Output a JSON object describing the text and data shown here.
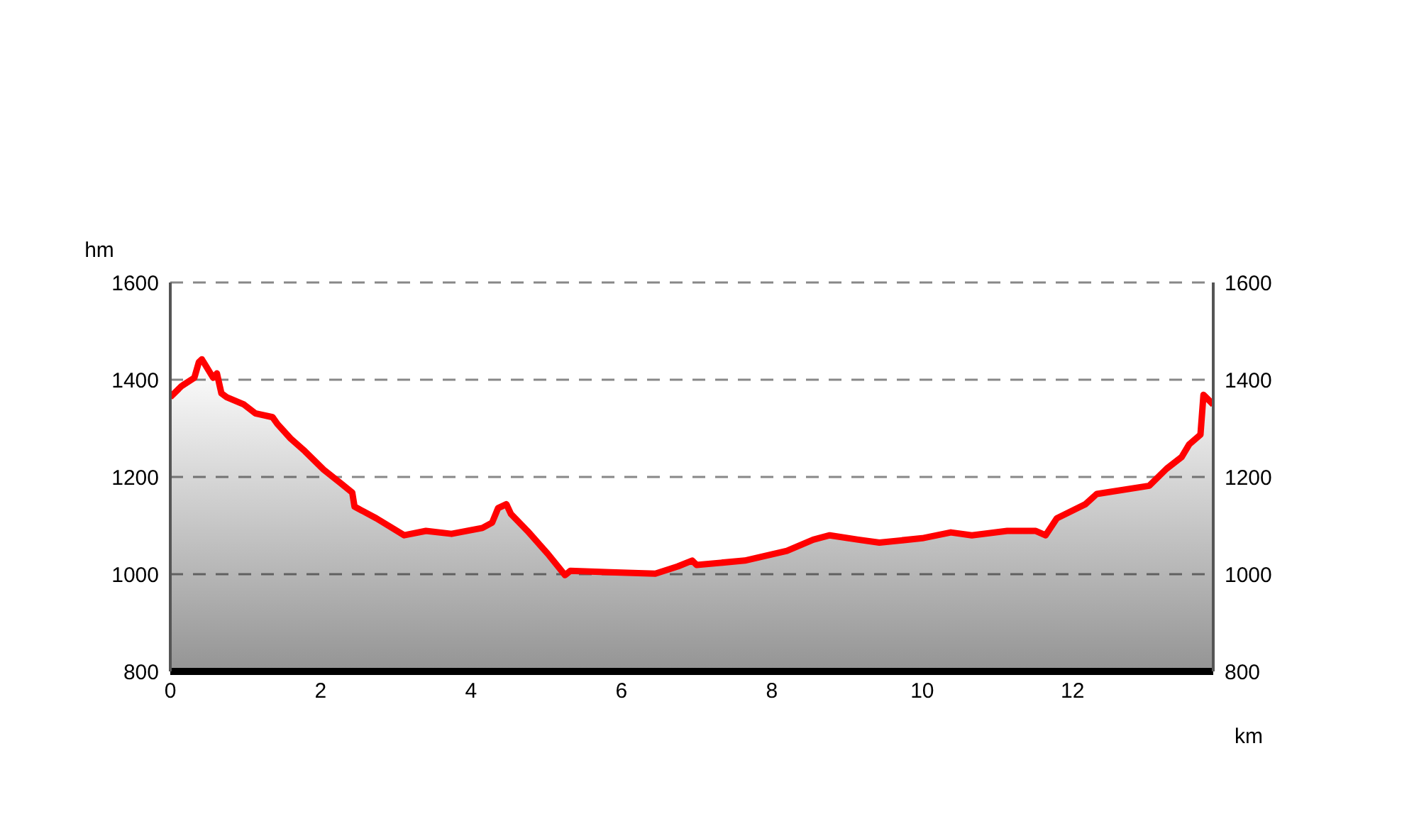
{
  "chart_data": {
    "type": "area",
    "xlabel": "km",
    "ylabel": "hm",
    "x": [
      0,
      0.15,
      0.32,
      0.38,
      0.42,
      0.57,
      0.62,
      0.68,
      0.75,
      0.98,
      1.13,
      1.36,
      1.43,
      1.6,
      1.79,
      2.04,
      2.26,
      2.42,
      2.45,
      2.74,
      3.11,
      3.4,
      3.74,
      4.15,
      4.28,
      4.36,
      4.47,
      4.53,
      4.75,
      5.02,
      5.25,
      5.32,
      5.85,
      6.45,
      6.75,
      6.94,
      7.0,
      7.64,
      8.2,
      8.55,
      8.77,
      9.15,
      9.43,
      10.0,
      10.38,
      10.66,
      11.13,
      11.51,
      11.64,
      11.79,
      12.17,
      12.32,
      13.02,
      13.25,
      13.45,
      13.55,
      13.7,
      13.74,
      13.87
    ],
    "series": [
      {
        "color": "#ff0000",
        "values": [
          1364,
          1387,
          1404,
          1436,
          1442,
          1404,
          1413,
          1372,
          1364,
          1349,
          1331,
          1323,
          1308,
          1279,
          1253,
          1215,
          1188,
          1168,
          1139,
          1115,
          1080,
          1089,
          1083,
          1095,
          1106,
          1136,
          1144,
          1124,
          1089,
          1042,
          998,
          1007,
          1004,
          1001,
          1016,
          1028,
          1019,
          1028,
          1048,
          1071,
          1080,
          1071,
          1065,
          1074,
          1086,
          1080,
          1089,
          1089,
          1080,
          1115,
          1144,
          1165,
          1182,
          1217,
          1241,
          1267,
          1287,
          1369,
          1349
        ]
      }
    ],
    "xlim": [
      0,
      13.87
    ],
    "xticks": [
      0,
      2,
      4,
      6,
      8,
      10,
      12
    ],
    "ylim": [
      800,
      1600
    ],
    "yticks": [
      800,
      1000,
      1200,
      1400,
      1600
    ],
    "y2lim": [
      800,
      1600
    ],
    "y2ticks": [
      800,
      1000,
      1200,
      1400,
      1600
    ],
    "grid": "y",
    "legend": false,
    "marker": "none",
    "line_style": "solid"
  }
}
